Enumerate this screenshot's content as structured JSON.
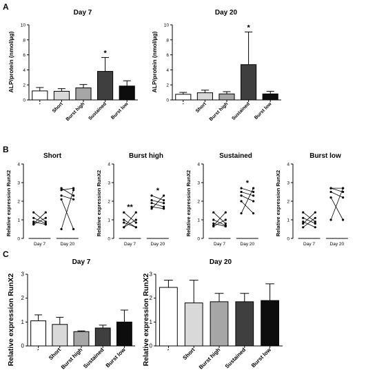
{
  "panels": {
    "A": {
      "letter": "A",
      "ylabel": "ALP/protein (nmol/µg)",
      "charts": [
        {
          "type": "bar",
          "title": "Day 7",
          "categories": [
            "-",
            "Short",
            "Burst high",
            "Sustained",
            "Burst low"
          ],
          "colors": [
            "#ffffff",
            "#d9d9d9",
            "#a6a6a6",
            "#3f3f3f",
            "#0d0d0d"
          ],
          "values": [
            1.2,
            1.15,
            1.6,
            3.8,
            1.85
          ],
          "errors": [
            0.45,
            0.35,
            0.45,
            1.85,
            0.7
          ],
          "significance": [
            "",
            "",
            "",
            "*",
            ""
          ],
          "ylim": [
            0,
            10
          ],
          "yticks": [
            "0",
            "2",
            "4",
            "6",
            "8",
            "10"
          ]
        },
        {
          "type": "bar",
          "title": "Day 20",
          "categories": [
            "-",
            "Short",
            "Burst high",
            "Sustained",
            "Burst low"
          ],
          "colors": [
            "#ffffff",
            "#d9d9d9",
            "#a6a6a6",
            "#3f3f3f",
            "#0d0d0d"
          ],
          "values": [
            0.75,
            0.95,
            0.8,
            4.7,
            0.8
          ],
          "errors": [
            0.25,
            0.35,
            0.3,
            4.35,
            0.35
          ],
          "significance": [
            "",
            "",
            "",
            "*",
            ""
          ],
          "ylim": [
            0,
            10
          ],
          "yticks": [
            "0",
            "2",
            "4",
            "6",
            "8",
            "10"
          ]
        }
      ]
    },
    "B": {
      "letter": "B",
      "ylabel": "Relative expression RunX2",
      "x_labels": [
        "Day 7",
        "Day 20"
      ],
      "charts": [
        {
          "type": "line",
          "title": "Short",
          "ylim": [
            0,
            4
          ],
          "yticks": [
            "0",
            "1",
            "2",
            "3",
            "4"
          ],
          "pairs": [
            [
              1.4,
              2.6
            ],
            [
              1.1,
              2.7
            ],
            [
              0.9,
              2.3
            ],
            [
              0.8,
              2.1
            ],
            [
              0.75,
              0.5
            ]
          ],
          "significance": [
            "",
            ""
          ]
        },
        {
          "type": "line",
          "title": "Burst high",
          "ylim": [
            0,
            4
          ],
          "yticks": [
            "0",
            "1",
            "2",
            "3",
            "4"
          ],
          "pairs": [
            [
              1.4,
              2.3
            ],
            [
              1.0,
              2.05
            ],
            [
              0.85,
              1.9
            ],
            [
              0.6,
              1.7
            ],
            [
              0.6,
              1.6
            ]
          ],
          "significance": [
            "**",
            "*"
          ]
        },
        {
          "type": "line",
          "title": "Sustained",
          "ylim": [
            0,
            4
          ],
          "yticks": [
            "0",
            "1",
            "2",
            "3",
            "4"
          ],
          "pairs": [
            [
              1.4,
              2.7
            ],
            [
              1.0,
              2.5
            ],
            [
              0.8,
              2.3
            ],
            [
              0.7,
              2.0
            ],
            [
              0.65,
              1.35
            ]
          ],
          "significance": [
            "",
            "*"
          ]
        },
        {
          "type": "line",
          "title": "Burst low",
          "ylim": [
            0,
            4
          ],
          "yticks": [
            "0",
            "1",
            "2",
            "3",
            "4"
          ],
          "pairs": [
            [
              1.4,
              2.7
            ],
            [
              1.1,
              2.7
            ],
            [
              0.9,
              2.5
            ],
            [
              0.8,
              2.2
            ],
            [
              0.6,
              1.0
            ]
          ],
          "significance": [
            "",
            ""
          ]
        }
      ]
    },
    "C": {
      "letter": "C",
      "ylabel": "Relative expression RunX2",
      "charts": [
        {
          "type": "bar",
          "title": "Day 7",
          "categories": [
            "-",
            "Short",
            "Burst high",
            "Sustained",
            "Burst low"
          ],
          "colors": [
            "#ffffff",
            "#d9d9d9",
            "#a6a6a6",
            "#3f3f3f",
            "#0d0d0d"
          ],
          "values": [
            1.05,
            0.9,
            0.6,
            0.75,
            1.0
          ],
          "errors": [
            0.25,
            0.3,
            0.03,
            0.12,
            0.5
          ],
          "ylim": [
            0,
            3
          ],
          "yticks": [
            "0",
            "1",
            "2",
            "3"
          ]
        },
        {
          "type": "bar",
          "title": "Day 20",
          "categories": [
            "-",
            "Short",
            "Burst high",
            "Sustained",
            "Burst low"
          ],
          "colors": [
            "#ffffff",
            "#d9d9d9",
            "#a6a6a6",
            "#3f3f3f",
            "#0d0d0d"
          ],
          "values": [
            2.45,
            1.8,
            1.85,
            1.85,
            1.9
          ],
          "errors": [
            0.3,
            0.95,
            0.35,
            0.35,
            0.7
          ],
          "ylim": [
            0,
            3
          ],
          "yticks": [
            "0",
            "1",
            "2",
            "3"
          ]
        }
      ]
    }
  }
}
